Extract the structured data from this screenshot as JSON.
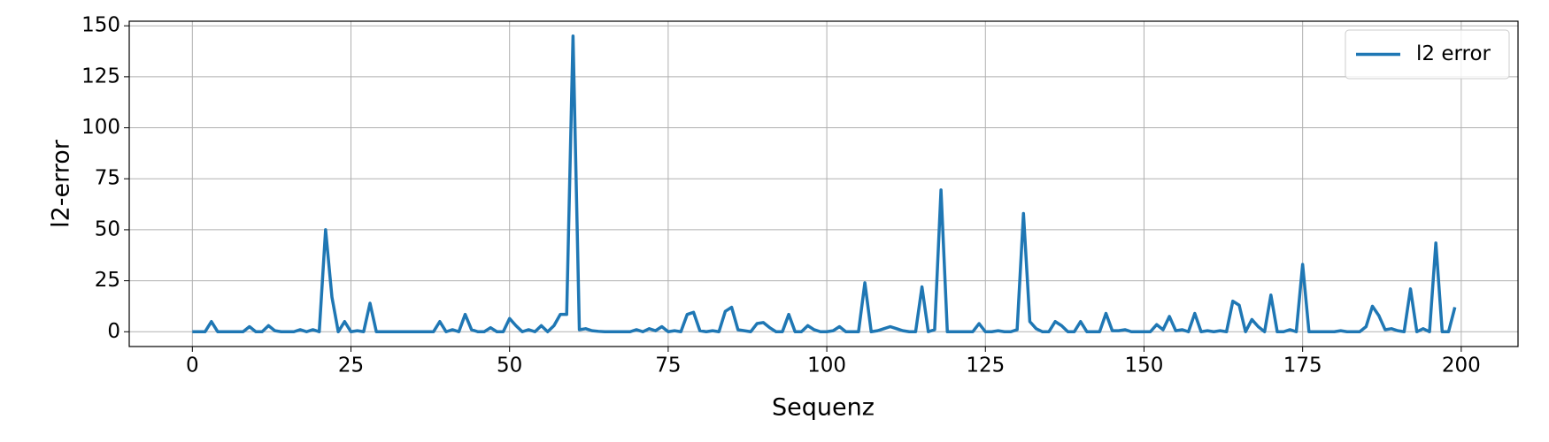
{
  "chart_data": {
    "type": "line",
    "x_label": "Sequenz",
    "y_label": "l2-error",
    "x": [
      0,
      1,
      2,
      3,
      4,
      5,
      6,
      7,
      8,
      9,
      10,
      11,
      12,
      13,
      14,
      15,
      16,
      17,
      18,
      19,
      20,
      21,
      22,
      23,
      24,
      25,
      26,
      27,
      28,
      29,
      30,
      31,
      32,
      33,
      34,
      35,
      36,
      37,
      38,
      39,
      40,
      41,
      42,
      43,
      44,
      45,
      46,
      47,
      48,
      49,
      50,
      51,
      52,
      53,
      54,
      55,
      56,
      57,
      58,
      59,
      60,
      61,
      62,
      63,
      64,
      65,
      66,
      67,
      68,
      69,
      70,
      71,
      72,
      73,
      74,
      75,
      76,
      77,
      78,
      79,
      80,
      81,
      82,
      83,
      84,
      85,
      86,
      87,
      88,
      89,
      90,
      91,
      92,
      93,
      94,
      95,
      96,
      97,
      98,
      99,
      100,
      101,
      102,
      103,
      104,
      105,
      106,
      107,
      108,
      109,
      110,
      111,
      112,
      113,
      114,
      115,
      116,
      117,
      118,
      119,
      120,
      121,
      122,
      123,
      124,
      125,
      126,
      127,
      128,
      129,
      130,
      131,
      132,
      133,
      134,
      135,
      136,
      137,
      138,
      139,
      140,
      141,
      142,
      143,
      144,
      145,
      146,
      147,
      148,
      149,
      150,
      151,
      152,
      153,
      154,
      155,
      156,
      157,
      158,
      159,
      160,
      161,
      162,
      163,
      164,
      165,
      166,
      167,
      168,
      169,
      170,
      171,
      172,
      173,
      174,
      175,
      176,
      177,
      178,
      179,
      180,
      181,
      182,
      183,
      184,
      185,
      186,
      187,
      188,
      189,
      190,
      191,
      192,
      193,
      194,
      195,
      196,
      197,
      198,
      199
    ],
    "series": [
      {
        "name": "l2 error",
        "color": "#1f77b4",
        "values": [
          0,
          0,
          0,
          5,
          0,
          0,
          0,
          0,
          0,
          2.5,
          0,
          0,
          3,
          0.5,
          0,
          0,
          0,
          1,
          0,
          1,
          0,
          50,
          17,
          0,
          5,
          0,
          0.5,
          0,
          14,
          0,
          0,
          0,
          0,
          0,
          0,
          0,
          0,
          0,
          0,
          5,
          0,
          1,
          0,
          8.5,
          1,
          0,
          0,
          2,
          0,
          0,
          6.5,
          3,
          0,
          1,
          0,
          3,
          0,
          3,
          8.5,
          8.5,
          145,
          1,
          1.5,
          0.5,
          0.2,
          0,
          0,
          0,
          0,
          0,
          1,
          0,
          1.5,
          0.5,
          2.5,
          0,
          0.5,
          0,
          8.5,
          9.5,
          0.5,
          0,
          0.5,
          0,
          10,
          12,
          1,
          0.5,
          0,
          4,
          4.5,
          2,
          0,
          0,
          8.5,
          0,
          0,
          3,
          1,
          0,
          0,
          0.5,
          2.5,
          0,
          0,
          0,
          24,
          0,
          0.5,
          1.5,
          2.5,
          1.5,
          0.5,
          0,
          0,
          22,
          0,
          1,
          69.5,
          0,
          0,
          0,
          0,
          0,
          4,
          0,
          0,
          0.5,
          0,
          0,
          1,
          58,
          5,
          1.5,
          0,
          0,
          5,
          3,
          0,
          0,
          5,
          0,
          0,
          0,
          9,
          0.5,
          0.5,
          1,
          0,
          0,
          0,
          0,
          3.5,
          1,
          7.5,
          0.5,
          1,
          0,
          9,
          0,
          0.5,
          0,
          0.5,
          0,
          15,
          13,
          0,
          6,
          2.5,
          0,
          18,
          0,
          0,
          1,
          0,
          33,
          0,
          0,
          0,
          0,
          0,
          0.5,
          0,
          0,
          0,
          2.5,
          12.5,
          8,
          1,
          1.5,
          0.5,
          0,
          21,
          0,
          1.5,
          0,
          43.5,
          0,
          0,
          12
        ]
      }
    ],
    "xlim": [
      -9.95,
      208.95
    ],
    "ylim": [
      -7.25,
      152.25
    ],
    "xticks": [
      0,
      25,
      50,
      75,
      100,
      125,
      150,
      175,
      200
    ],
    "yticks": [
      0,
      25,
      50,
      75,
      100,
      125,
      150
    ],
    "grid": true,
    "legend": "upper right"
  }
}
